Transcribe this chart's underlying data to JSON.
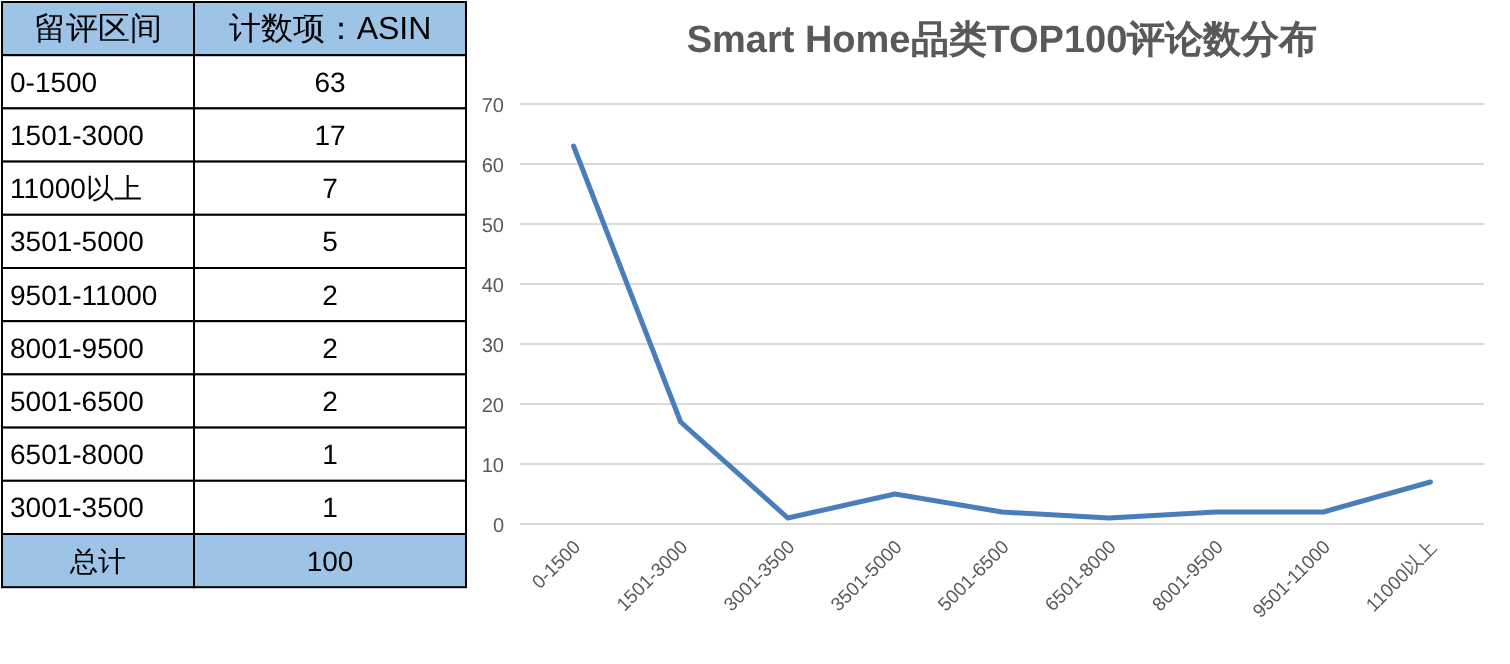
{
  "chart_data": [
    {
      "type": "other",
      "xlabel": "留评区间",
      "ylabel": "计数项：ASIN",
      "categories": [
        "0-1500",
        "1501-3000",
        "11000以上",
        "3501-5000",
        "9501-11000",
        "8001-9500",
        "5001-6500",
        "6501-8000",
        "3001-3500",
        "总计"
      ],
      "values": [
        63,
        17,
        7,
        5,
        2,
        2,
        2,
        1,
        1,
        100
      ],
      "data_labels": true
    },
    {
      "type": "line",
      "title": "Smart Home品类TOP100评论数分布",
      "categories": [
        "0-1500",
        "1501-3000",
        "3001-3500",
        "3501-5000",
        "5001-6500",
        "6501-8000",
        "8001-9500",
        "9501-11000",
        "11000以上"
      ],
      "series": [
        {
          "color": "#4a7ebb",
          "values": [
            63,
            17,
            1,
            5,
            2,
            1,
            2,
            2,
            7
          ]
        }
      ],
      "ylim": [
        0,
        70
      ],
      "yticks": [
        0,
        10,
        20,
        30,
        40,
        50,
        60,
        70
      ],
      "grid": "y",
      "marker": "none",
      "line_style": "solid"
    }
  ]
}
